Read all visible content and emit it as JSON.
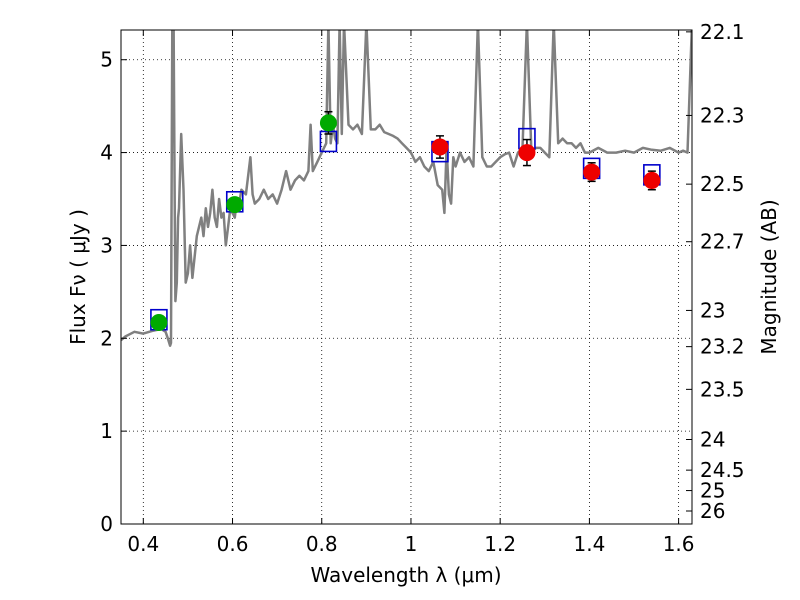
{
  "chart_data": {
    "type": "scatter",
    "title": "",
    "xlabel": "Wavelength  λ (μm)",
    "ylabel": "Flux  Fν  ( μJy )",
    "ylabel_right": "Magnitude (AB)",
    "xlim": [
      0.35,
      1.63
    ],
    "ylim": [
      0,
      5.32
    ],
    "grid": true,
    "x_ticks": [
      0.4,
      0.6,
      0.8,
      1.0,
      1.2,
      1.4,
      1.6
    ],
    "x_tick_labels": [
      "0.4",
      "0.6",
      "0.8",
      "1",
      "1.2",
      "1.4",
      "1.6"
    ],
    "y_ticks": [
      0,
      1,
      2,
      3,
      4,
      5
    ],
    "y_tick_labels": [
      "0",
      "1",
      "2",
      "3",
      "4",
      "5"
    ],
    "right_ticks": [
      {
        "label": "22.1",
        "flux": 5.3
      },
      {
        "label": "22.3",
        "flux": 4.4
      },
      {
        "label": "22.5",
        "flux": 3.66
      },
      {
        "label": "22.7",
        "flux": 3.04
      },
      {
        "label": "23",
        "flux": 2.3
      },
      {
        "label": "23.2",
        "flux": 1.91
      },
      {
        "label": "23.5",
        "flux": 1.45
      },
      {
        "label": "24",
        "flux": 0.91
      },
      {
        "label": "24.5",
        "flux": 0.58
      },
      {
        "label": "25",
        "flux": 0.36
      },
      {
        "label": "26",
        "flux": 0.14
      }
    ],
    "series": [
      {
        "kind": "spectrum",
        "color": "#808080",
        "x": [
          0.35,
          0.36,
          0.38,
          0.4,
          0.42,
          0.44,
          0.45,
          0.455,
          0.46,
          0.462,
          0.465,
          0.468,
          0.47,
          0.472,
          0.475,
          0.478,
          0.48,
          0.485,
          0.49,
          0.495,
          0.5,
          0.505,
          0.51,
          0.52,
          0.53,
          0.535,
          0.54,
          0.545,
          0.55,
          0.555,
          0.56,
          0.565,
          0.57,
          0.575,
          0.58,
          0.585,
          0.59,
          0.595,
          0.6,
          0.605,
          0.61,
          0.615,
          0.62,
          0.63,
          0.64,
          0.645,
          0.65,
          0.66,
          0.67,
          0.68,
          0.69,
          0.7,
          0.71,
          0.72,
          0.73,
          0.74,
          0.75,
          0.76,
          0.77,
          0.775,
          0.78,
          0.79,
          0.8,
          0.81,
          0.815,
          0.82,
          0.825,
          0.83,
          0.835,
          0.84,
          0.845,
          0.85,
          0.86,
          0.87,
          0.88,
          0.89,
          0.9,
          0.91,
          0.92,
          0.93,
          0.94,
          0.95,
          0.96,
          0.97,
          0.98,
          0.99,
          1.0,
          1.01,
          1.02,
          1.03,
          1.04,
          1.05,
          1.06,
          1.07,
          1.075,
          1.08,
          1.085,
          1.09,
          1.095,
          1.1,
          1.11,
          1.12,
          1.13,
          1.14,
          1.15,
          1.16,
          1.17,
          1.18,
          1.19,
          1.2,
          1.21,
          1.22,
          1.23,
          1.24,
          1.25,
          1.26,
          1.27,
          1.28,
          1.29,
          1.3,
          1.31,
          1.32,
          1.33,
          1.34,
          1.35,
          1.36,
          1.37,
          1.38,
          1.39,
          1.4,
          1.42,
          1.44,
          1.46,
          1.48,
          1.5,
          1.52,
          1.54,
          1.56,
          1.58,
          1.6,
          1.61,
          1.62,
          1.63
        ],
        "y": [
          1.98,
          2.02,
          2.07,
          2.05,
          2.08,
          2.1,
          2.07,
          2.0,
          1.92,
          1.95,
          5.4,
          5.4,
          3.8,
          2.4,
          2.6,
          3.3,
          3.4,
          4.2,
          3.6,
          2.6,
          2.7,
          3.0,
          2.65,
          3.1,
          3.3,
          3.1,
          3.4,
          3.2,
          3.35,
          3.6,
          3.3,
          3.2,
          3.5,
          3.3,
          3.35,
          3.0,
          3.2,
          3.4,
          3.35,
          3.3,
          3.5,
          3.45,
          3.6,
          3.55,
          3.95,
          3.55,
          3.45,
          3.5,
          3.6,
          3.5,
          3.55,
          3.45,
          3.6,
          3.8,
          3.6,
          3.7,
          3.75,
          3.7,
          3.8,
          4.3,
          3.8,
          3.9,
          4.0,
          4.1,
          5.4,
          4.1,
          4.3,
          4.15,
          4.1,
          5.4,
          4.2,
          5.4,
          4.3,
          4.25,
          4.3,
          4.2,
          5.4,
          4.25,
          4.25,
          4.3,
          4.22,
          4.2,
          4.18,
          4.15,
          4.1,
          4.05,
          4.0,
          3.9,
          3.95,
          3.85,
          3.8,
          3.9,
          3.65,
          3.6,
          3.35,
          4.05,
          3.55,
          3.45,
          3.95,
          3.85,
          4.0,
          3.9,
          3.95,
          3.85,
          5.4,
          3.95,
          3.85,
          3.85,
          3.9,
          3.95,
          3.98,
          4.0,
          3.85,
          4.0,
          4.05,
          5.4,
          4.0,
          4.05,
          4.05,
          4.0,
          3.95,
          5.4,
          4.1,
          4.15,
          4.1,
          4.1,
          4.05,
          4.1,
          4.0,
          4.0,
          4.05,
          4.0,
          4.0,
          4.02,
          4.0,
          4.05,
          4.03,
          4.02,
          4.05,
          4.0,
          4.02,
          4.0,
          5.4
        ]
      },
      {
        "kind": "model_photometry",
        "color": "#0000cc",
        "x": [
          0.435,
          0.605,
          0.815,
          1.065,
          1.26,
          1.405,
          1.54
        ],
        "y": [
          2.2,
          3.47,
          4.12,
          4.01,
          4.15,
          3.83,
          3.76
        ]
      },
      {
        "kind": "observed_optical",
        "color": "#00aa00",
        "x": [
          0.435,
          0.605,
          0.815
        ],
        "y": [
          2.17,
          3.44,
          4.32
        ],
        "err": [
          0.06,
          0.07,
          0.12
        ]
      },
      {
        "kind": "observed_nir",
        "color": "#ee0000",
        "x": [
          1.065,
          1.26,
          1.405,
          1.54
        ],
        "y": [
          4.06,
          4.0,
          3.79,
          3.7
        ],
        "err": [
          0.12,
          0.14,
          0.1,
          0.1
        ]
      }
    ]
  }
}
